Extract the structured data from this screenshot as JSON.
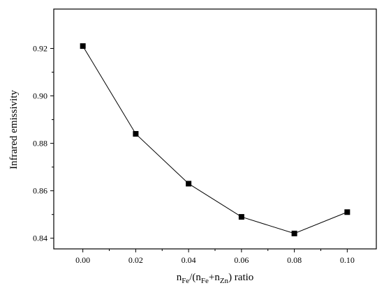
{
  "chart_data": {
    "type": "line",
    "x": [
      0.0,
      0.02,
      0.04,
      0.06,
      0.08,
      0.1
    ],
    "series": [
      {
        "values": [
          0.921,
          0.884,
          0.863,
          0.849,
          0.842,
          0.851
        ]
      }
    ],
    "ylabel": "Infrared emissivity",
    "xlabel_parts": {
      "n1": "n",
      "sub1": "Fe",
      "slash": "/(",
      "n2": "n",
      "sub2": "Fe",
      "plus": "+",
      "n3": "n",
      "sub3": "Zn",
      "tail": ") ratio"
    },
    "x_ticks": [
      "0.00",
      "0.02",
      "0.04",
      "0.06",
      "0.08",
      "0.10"
    ],
    "x_tick_values": [
      0.0,
      0.02,
      0.04,
      0.06,
      0.08,
      0.1
    ],
    "y_ticks": [
      "0.84",
      "0.86",
      "0.88",
      "0.90",
      "0.92"
    ],
    "y_tick_values": [
      0.84,
      0.86,
      0.88,
      0.9,
      0.92
    ],
    "xlim": [
      -0.011,
      0.111
    ],
    "ylim": [
      0.8355,
      0.9366
    ],
    "grid": false,
    "marker": "square",
    "line_color": "#000000",
    "marker_color": "#000000"
  }
}
